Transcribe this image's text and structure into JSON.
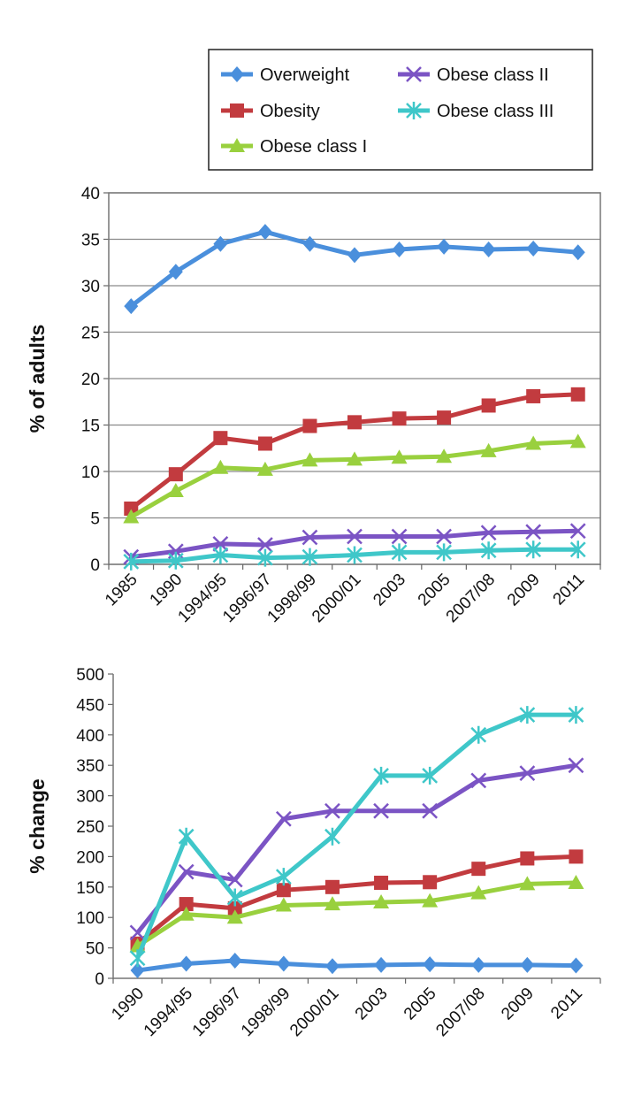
{
  "legend": {
    "entries": [
      "Overweight",
      "Obesity",
      "Obese class I",
      "Obese class II",
      "Obese class III"
    ]
  },
  "series_styles": [
    {
      "name": "Overweight",
      "color": "#4a8fdc",
      "marker": "diamond"
    },
    {
      "name": "Obesity",
      "color": "#c23b3f",
      "marker": "square"
    },
    {
      "name": "Obese class I",
      "color": "#99d03e",
      "marker": "triangle"
    },
    {
      "name": "Obese class II",
      "color": "#7b54c4",
      "marker": "x"
    },
    {
      "name": "Obese class III",
      "color": "#3fc7c9",
      "marker": "star"
    }
  ],
  "chart_data": [
    {
      "type": "line",
      "title": "",
      "xlabel": "",
      "ylabel": "% of adults",
      "ylim": [
        0,
        40
      ],
      "yticks": [
        0,
        5,
        10,
        15,
        20,
        25,
        30,
        35,
        40
      ],
      "grid": true,
      "categories": [
        "1985",
        "1990",
        "1994/95",
        "1996/97",
        "1998/99",
        "2000/01",
        "2003",
        "2005",
        "2007/08",
        "2009",
        "2011"
      ],
      "series": [
        {
          "name": "Overweight",
          "values": [
            27.8,
            31.5,
            34.5,
            35.8,
            34.5,
            33.3,
            33.9,
            34.2,
            33.9,
            34.0,
            33.6
          ]
        },
        {
          "name": "Obesity",
          "values": [
            6.0,
            9.7,
            13.6,
            13.0,
            14.9,
            15.3,
            15.7,
            15.8,
            17.1,
            18.1,
            18.3
          ]
        },
        {
          "name": "Obese class I",
          "values": [
            5.1,
            7.9,
            10.4,
            10.2,
            11.2,
            11.3,
            11.5,
            11.6,
            12.2,
            13.0,
            13.2
          ]
        },
        {
          "name": "Obese class II",
          "values": [
            0.8,
            1.4,
            2.2,
            2.1,
            2.9,
            3.0,
            3.0,
            3.0,
            3.4,
            3.5,
            3.6
          ]
        },
        {
          "name": "Obese class III",
          "values": [
            0.3,
            0.4,
            1.0,
            0.7,
            0.8,
            1.0,
            1.3,
            1.3,
            1.5,
            1.6,
            1.6
          ]
        }
      ]
    },
    {
      "type": "line",
      "title": "",
      "xlabel": "",
      "ylabel": "% change",
      "ylim": [
        0,
        500
      ],
      "yticks": [
        0,
        50,
        100,
        150,
        200,
        250,
        300,
        350,
        400,
        450,
        500
      ],
      "grid": false,
      "categories": [
        "1990",
        "1994/95",
        "1996/97",
        "1998/99",
        "2000/01",
        "2003",
        "2005",
        "2007/08",
        "2009",
        "2011"
      ],
      "series": [
        {
          "name": "Overweight",
          "values": [
            13,
            24,
            29,
            24,
            20,
            22,
            23,
            22,
            22,
            21
          ]
        },
        {
          "name": "Obesity",
          "values": [
            57,
            122,
            115,
            145,
            150,
            157,
            158,
            180,
            197,
            200
          ]
        },
        {
          "name": "Obese class I",
          "values": [
            53,
            105,
            100,
            120,
            122,
            125,
            127,
            140,
            155,
            157
          ]
        },
        {
          "name": "Obese class II",
          "values": [
            75,
            175,
            162,
            262,
            275,
            275,
            275,
            325,
            337,
            350
          ]
        },
        {
          "name": "Obese class III",
          "values": [
            33,
            233,
            133,
            167,
            233,
            333,
            333,
            400,
            433,
            433
          ]
        }
      ]
    }
  ]
}
